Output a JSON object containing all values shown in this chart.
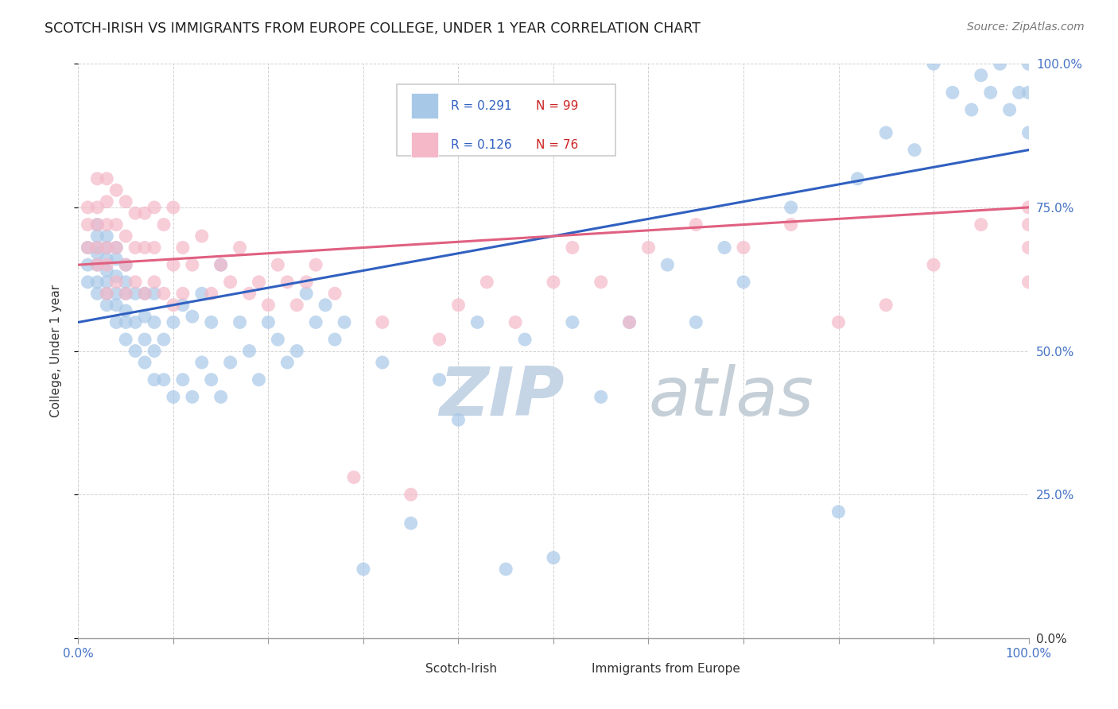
{
  "title": "SCOTCH-IRISH VS IMMIGRANTS FROM EUROPE COLLEGE, UNDER 1 YEAR CORRELATION CHART",
  "source": "Source: ZipAtlas.com",
  "ylabel": "College, Under 1 year",
  "ytick_labels": [
    "0.0%",
    "25.0%",
    "50.0%",
    "75.0%",
    "100.0%"
  ],
  "ytick_values": [
    0,
    0.25,
    0.5,
    0.75,
    1.0
  ],
  "xlim": [
    0,
    1
  ],
  "ylim": [
    0,
    1
  ],
  "blue_R": 0.291,
  "blue_N": 99,
  "pink_R": 0.126,
  "pink_N": 76,
  "blue_color": "#a8c8e8",
  "pink_color": "#f4b8c8",
  "blue_line_color": "#3060c0",
  "pink_line_color": "#e06080",
  "watermark_zip": "ZIP",
  "watermark_atlas": "atlas",
  "watermark_color_zip": "#c5d5e5",
  "watermark_color_atlas": "#c5cfd8",
  "legend_blue_label": "Scotch-Irish",
  "legend_pink_label": "Immigrants from Europe",
  "ytick_color_zero": "#333333",
  "ytick_color_other": "#4472c4",
  "xtick_color": "#4472c4",
  "blue_scatter_x": [
    0.01,
    0.01,
    0.01,
    0.02,
    0.02,
    0.02,
    0.02,
    0.02,
    0.02,
    0.02,
    0.03,
    0.03,
    0.03,
    0.03,
    0.03,
    0.03,
    0.03,
    0.04,
    0.04,
    0.04,
    0.04,
    0.04,
    0.04,
    0.05,
    0.05,
    0.05,
    0.05,
    0.05,
    0.05,
    0.06,
    0.06,
    0.06,
    0.07,
    0.07,
    0.07,
    0.07,
    0.08,
    0.08,
    0.08,
    0.08,
    0.09,
    0.09,
    0.1,
    0.1,
    0.11,
    0.11,
    0.12,
    0.12,
    0.13,
    0.13,
    0.14,
    0.14,
    0.15,
    0.15,
    0.16,
    0.17,
    0.18,
    0.19,
    0.2,
    0.21,
    0.22,
    0.23,
    0.24,
    0.25,
    0.26,
    0.27,
    0.28,
    0.3,
    0.32,
    0.35,
    0.38,
    0.4,
    0.42,
    0.45,
    0.47,
    0.5,
    0.52,
    0.55,
    0.58,
    0.62,
    0.65,
    0.68,
    0.7,
    0.75,
    0.8,
    0.82,
    0.85,
    0.88,
    0.9,
    0.92,
    0.94,
    0.95,
    0.96,
    0.97,
    0.98,
    0.99,
    1.0,
    1.0,
    1.0
  ],
  "blue_scatter_y": [
    0.62,
    0.65,
    0.68,
    0.6,
    0.62,
    0.65,
    0.67,
    0.68,
    0.7,
    0.72,
    0.58,
    0.6,
    0.62,
    0.64,
    0.66,
    0.68,
    0.7,
    0.55,
    0.58,
    0.6,
    0.63,
    0.66,
    0.68,
    0.52,
    0.55,
    0.57,
    0.6,
    0.62,
    0.65,
    0.5,
    0.55,
    0.6,
    0.48,
    0.52,
    0.56,
    0.6,
    0.45,
    0.5,
    0.55,
    0.6,
    0.45,
    0.52,
    0.42,
    0.55,
    0.45,
    0.58,
    0.42,
    0.56,
    0.48,
    0.6,
    0.45,
    0.55,
    0.42,
    0.65,
    0.48,
    0.55,
    0.5,
    0.45,
    0.55,
    0.52,
    0.48,
    0.5,
    0.6,
    0.55,
    0.58,
    0.52,
    0.55,
    0.12,
    0.48,
    0.2,
    0.45,
    0.38,
    0.55,
    0.12,
    0.52,
    0.14,
    0.55,
    0.42,
    0.55,
    0.65,
    0.55,
    0.68,
    0.62,
    0.75,
    0.22,
    0.8,
    0.88,
    0.85,
    1.0,
    0.95,
    0.92,
    0.98,
    0.95,
    1.0,
    0.92,
    0.95,
    0.88,
    0.95,
    1.0
  ],
  "pink_scatter_x": [
    0.01,
    0.01,
    0.01,
    0.02,
    0.02,
    0.02,
    0.02,
    0.02,
    0.03,
    0.03,
    0.03,
    0.03,
    0.03,
    0.03,
    0.04,
    0.04,
    0.04,
    0.04,
    0.05,
    0.05,
    0.05,
    0.05,
    0.06,
    0.06,
    0.06,
    0.07,
    0.07,
    0.07,
    0.08,
    0.08,
    0.08,
    0.09,
    0.09,
    0.1,
    0.1,
    0.1,
    0.11,
    0.11,
    0.12,
    0.13,
    0.14,
    0.15,
    0.16,
    0.17,
    0.18,
    0.19,
    0.2,
    0.21,
    0.22,
    0.23,
    0.24,
    0.25,
    0.27,
    0.29,
    0.32,
    0.35,
    0.38,
    0.4,
    0.43,
    0.46,
    0.5,
    0.52,
    0.55,
    0.58,
    0.6,
    0.65,
    0.7,
    0.75,
    0.8,
    0.85,
    0.9,
    0.95,
    1.0,
    1.0,
    1.0,
    1.0
  ],
  "pink_scatter_y": [
    0.68,
    0.72,
    0.75,
    0.65,
    0.68,
    0.72,
    0.75,
    0.8,
    0.6,
    0.65,
    0.68,
    0.72,
    0.76,
    0.8,
    0.62,
    0.68,
    0.72,
    0.78,
    0.6,
    0.65,
    0.7,
    0.76,
    0.62,
    0.68,
    0.74,
    0.6,
    0.68,
    0.74,
    0.62,
    0.68,
    0.75,
    0.6,
    0.72,
    0.58,
    0.65,
    0.75,
    0.6,
    0.68,
    0.65,
    0.7,
    0.6,
    0.65,
    0.62,
    0.68,
    0.6,
    0.62,
    0.58,
    0.65,
    0.62,
    0.58,
    0.62,
    0.65,
    0.6,
    0.28,
    0.55,
    0.25,
    0.52,
    0.58,
    0.62,
    0.55,
    0.62,
    0.68,
    0.62,
    0.55,
    0.68,
    0.72,
    0.68,
    0.72,
    0.55,
    0.58,
    0.65,
    0.72,
    0.62,
    0.68,
    0.75,
    0.72
  ]
}
